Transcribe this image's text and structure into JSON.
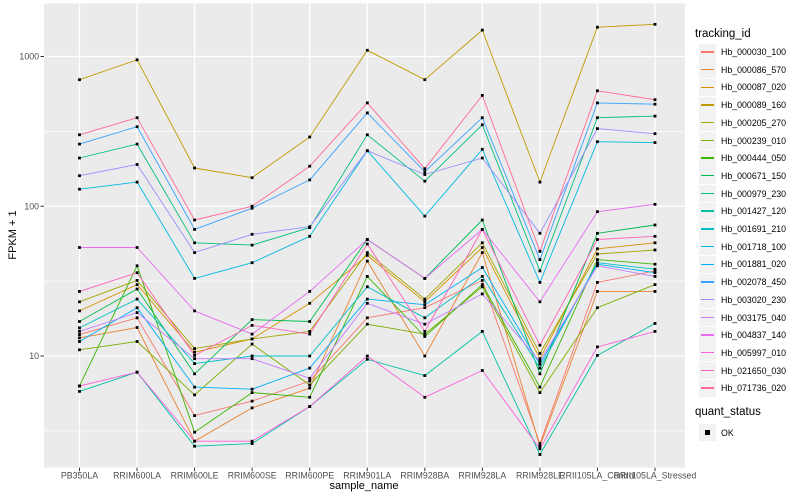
{
  "chart_data": {
    "type": "line",
    "title": "",
    "xlabel": "sample_name",
    "ylabel": "FPKM + 1",
    "y_scale": "log10",
    "ylim": [
      1.8,
      2260
    ],
    "y_ticks": [
      10,
      100,
      1000
    ],
    "y_tick_labels": [
      "10",
      "100",
      "1000"
    ],
    "y_minor_ticks": [
      3.162,
      31.62,
      316.2
    ],
    "grid": true,
    "legend_position": "right",
    "categories": [
      "PB350LA",
      "RRIM600LA",
      "RRIM600LE",
      "RRIM600SE",
      "RRIM600PE",
      "RRIM901LA",
      "RRIM928BA",
      "RRIM928LA",
      "RRIM928LE",
      "RRII105LA_Control",
      "RRII105LA_Stressed"
    ],
    "series": [
      {
        "name": "Hb_000030_100",
        "color": "#F8766D",
        "values": [
          13.9,
          18,
          4.0,
          5.0,
          6.8,
          18,
          21,
          32,
          2.6,
          31,
          37
        ]
      },
      {
        "name": "Hb_000086_570",
        "color": "#EA8331",
        "values": [
          13.2,
          15.5,
          2.7,
          4.5,
          6.1,
          43,
          10,
          49,
          2.5,
          27,
          27
        ]
      },
      {
        "name": "Hb_000087_020",
        "color": "#D89000",
        "values": [
          20,
          30,
          10.6,
          13,
          22.5,
          47,
          23,
          53,
          9.6,
          52,
          57
        ]
      },
      {
        "name": "Hb_000089_160",
        "color": "#C09B00",
        "values": [
          700,
          950,
          180,
          155,
          290,
          1100,
          700,
          1500,
          145,
          1570,
          1640
        ]
      },
      {
        "name": "Hb_000205_270",
        "color": "#A3A500",
        "values": [
          23,
          32,
          11.2,
          13,
          14.6,
          49,
          24,
          57,
          10.4,
          48,
          51
        ]
      },
      {
        "name": "Hb_000239_010",
        "color": "#7CAE00",
        "values": [
          11,
          12.5,
          5.5,
          12,
          6.4,
          16.3,
          14,
          29,
          5.7,
          21,
          30
        ]
      },
      {
        "name": "Hb_000444_050",
        "color": "#39B600",
        "values": [
          6.3,
          40,
          3.1,
          5.7,
          5.3,
          34,
          13.5,
          30,
          6.2,
          44,
          41
        ]
      },
      {
        "name": "Hb_000671_150",
        "color": "#00BB4E",
        "values": [
          17,
          28,
          7.6,
          17.5,
          17,
          60,
          33,
          81,
          7.6,
          66,
          75
        ]
      },
      {
        "name": "Hb_000979_230",
        "color": "#00BF7D",
        "values": [
          210,
          260,
          57,
          55,
          72,
          300,
          147,
          350,
          37,
          390,
          400
        ]
      },
      {
        "name": "Hb_001427_120",
        "color": "#00C1A3",
        "values": [
          5.8,
          7.8,
          2.5,
          2.6,
          4.6,
          9.5,
          7.4,
          14.6,
          2.2,
          10.1,
          16.5
        ]
      },
      {
        "name": "Hb_001691_210",
        "color": "#00BFC4",
        "values": [
          15.4,
          24,
          8.9,
          10,
          10,
          29,
          18,
          34,
          8.3,
          42,
          38
        ]
      },
      {
        "name": "Hb_001718_100",
        "color": "#00BAE0",
        "values": [
          130,
          145,
          33,
          42,
          63,
          235,
          86,
          240,
          31,
          270,
          266
        ]
      },
      {
        "name": "Hb_001881_020",
        "color": "#00B0F6",
        "values": [
          12.5,
          21,
          6.2,
          6.0,
          8.3,
          24,
          22,
          39,
          8.8,
          41,
          36
        ]
      },
      {
        "name": "Hb_002078_450",
        "color": "#35A2FF",
        "values": [
          260,
          340,
          70,
          97,
          150,
          420,
          170,
          390,
          44,
          490,
          480
        ]
      },
      {
        "name": "Hb_003020_230",
        "color": "#9590FF",
        "values": [
          160,
          190,
          49,
          65,
          73,
          235,
          163,
          210,
          66,
          330,
          305
        ]
      },
      {
        "name": "Hb_003175_040",
        "color": "#C77CFF",
        "values": [
          14.6,
          19.5,
          9.6,
          9.6,
          7.1,
          22.5,
          16.3,
          26,
          9.2,
          40,
          34
        ]
      },
      {
        "name": "Hb_004837_140",
        "color": "#E76BF3",
        "values": [
          53,
          53,
          20,
          14,
          27,
          60,
          33,
          70,
          23,
          92,
          103
        ]
      },
      {
        "name": "Hb_005997_010",
        "color": "#FA62DB",
        "values": [
          6.3,
          7.8,
          2.7,
          2.7,
          4.6,
          10,
          5.3,
          8.0,
          2.4,
          11.5,
          14.6
        ]
      },
      {
        "name": "Hb_021650_030",
        "color": "#FF62BC",
        "values": [
          27,
          36,
          10.1,
          16,
          14,
          56,
          14.6,
          70,
          11.8,
          60,
          63
        ]
      },
      {
        "name": "Hb_071736_020",
        "color": "#FF6A98",
        "values": [
          300,
          390,
          81,
          100,
          185,
          490,
          178,
          550,
          50,
          590,
          515
        ]
      }
    ],
    "legend": {
      "color_title": "tracking_id",
      "shape_title": "quant_status",
      "shape_items": [
        {
          "label": "OK",
          "shape": "filled-square",
          "color": "#000000"
        }
      ]
    },
    "point": {
      "shape": "square",
      "color": "#000000",
      "size": 2.8
    }
  },
  "style": {
    "panel_bg": "#EBEBEB",
    "grid_major": "#FFFFFF",
    "grid_minor": "#FFFFFF",
    "axis_text": "#4D4D4D",
    "tick_mark": "#333333",
    "legend_key_bg": "#F2F2F2",
    "text": "#000000",
    "background": "#FFFFFF"
  }
}
